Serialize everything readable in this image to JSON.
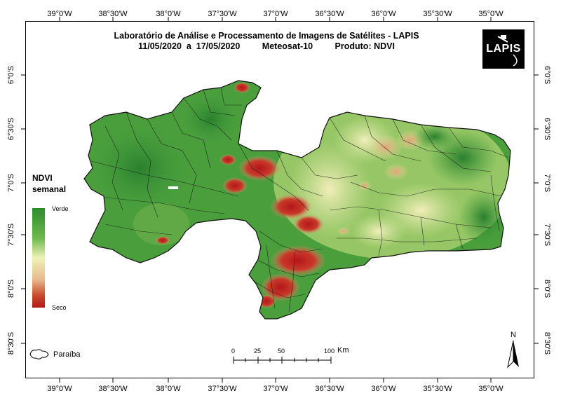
{
  "title": {
    "line1": "Laboratório de Análise e Processamento de Imagens de Satélites - LAPIS",
    "dates": "11/05/2020  a  17/05/2020",
    "satellite": "Meteosat-10",
    "product": "Produto: NDVI"
  },
  "logo": {
    "text": "LAPIS"
  },
  "longitude_labels": [
    "39°0'W",
    "38°30'W",
    "38°0'W",
    "37°30'W",
    "37°0'W",
    "36°30'W",
    "36°0'W",
    "35°30'W",
    "35°0'W"
  ],
  "latitude_labels": [
    "6°0'S",
    "6°30'S",
    "7°0'S",
    "7°30'S",
    "8°0'S",
    "8°30'S"
  ],
  "legend": {
    "title_line1": "NDVI",
    "title_line2": "semanal",
    "top_label": "Verde",
    "bottom_label": "Seco",
    "colors": {
      "green": "#2f8a2f",
      "light": "#eef2b8",
      "dry": "#b3161a"
    }
  },
  "inset": {
    "label": "Paraíba"
  },
  "scale_bar": {
    "ticks": [
      "0",
      "25",
      "50",
      "100"
    ],
    "unit": "Km"
  },
  "north_arrow": {
    "label": "N"
  }
}
